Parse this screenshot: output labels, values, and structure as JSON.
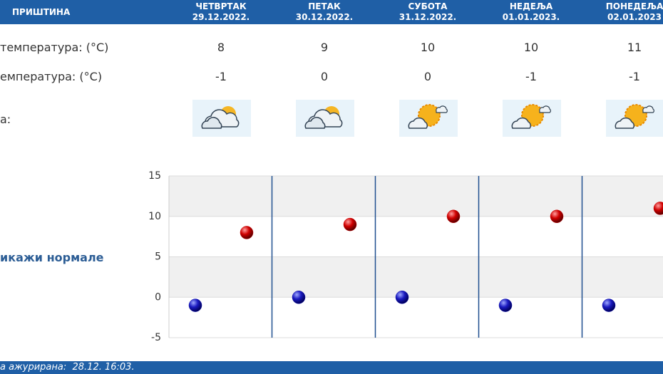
{
  "header": {
    "city": "ПРИШТИНА",
    "days": [
      {
        "name": "ЧЕТВРТАК",
        "date": "29.12.2022."
      },
      {
        "name": "ПЕТАК",
        "date": "30.12.2022."
      },
      {
        "name": "СУБОТА",
        "date": "31.12.2022."
      },
      {
        "name": "НЕДЕЉА",
        "date": "01.01.2023."
      },
      {
        "name": "ПОНЕДЕЉА",
        "date": "02.01.2023"
      }
    ]
  },
  "rows": [
    {
      "label": "температура: (°C)",
      "values": [
        8,
        9,
        10,
        10,
        11
      ]
    },
    {
      "label": "емпература: (°C)",
      "values": [
        -1,
        0,
        0,
        -1,
        -1
      ]
    },
    {
      "label": "а:"
    }
  ],
  "normals_link": "икажи нормале",
  "footer": "а ажурирана:  28.12. 16:03.",
  "chart_data": {
    "type": "dot",
    "ylim": [
      -5,
      15
    ],
    "yticks": [
      15,
      10,
      5,
      0,
      -5
    ],
    "series": [
      {
        "color": "#0a0aa8",
        "values": [
          -1,
          0,
          0,
          -1,
          -1
        ]
      },
      {
        "color": "#c80000",
        "values": [
          8,
          9,
          10,
          10,
          11
        ]
      }
    ]
  }
}
